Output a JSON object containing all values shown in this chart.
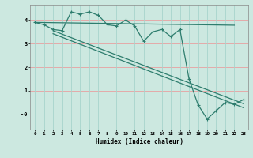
{
  "title": "",
  "xlabel": "Humidex (Indice chaleur)",
  "line_color": "#2e7d6e",
  "bg_color": "#cce8e0",
  "grid_color_h": "#e8a0a0",
  "grid_color_v": "#a8d4cc",
  "xlim": [
    -0.5,
    23.5
  ],
  "ylim": [
    -0.65,
    4.65
  ],
  "yticks": [
    0,
    1,
    2,
    3,
    4
  ],
  "ytick_labels": [
    "-0",
    "1",
    "2",
    "3",
    "4"
  ],
  "xticks": [
    0,
    1,
    2,
    3,
    4,
    5,
    6,
    7,
    8,
    9,
    10,
    11,
    12,
    13,
    14,
    15,
    16,
    17,
    18,
    19,
    20,
    21,
    22,
    23
  ],
  "data_x": [
    0,
    1,
    2,
    3,
    4,
    5,
    6,
    7,
    8,
    9,
    10,
    11,
    12,
    13,
    14,
    15,
    16,
    17,
    18,
    19,
    20,
    21,
    22,
    23
  ],
  "data_y": [
    3.9,
    3.8,
    3.6,
    3.55,
    4.35,
    4.25,
    4.35,
    4.2,
    3.8,
    3.75,
    4.0,
    3.75,
    3.1,
    3.5,
    3.6,
    3.3,
    3.6,
    1.5,
    0.4,
    -0.2,
    0.15,
    0.5,
    0.42,
    0.62
  ],
  "trend1_x": [
    0,
    22
  ],
  "trend1_y": [
    3.9,
    3.78
  ],
  "trend2_x": [
    2,
    23
  ],
  "trend2_y": [
    3.55,
    0.45
  ],
  "trend3_x": [
    2,
    23
  ],
  "trend3_y": [
    3.42,
    0.28
  ],
  "marker": "+"
}
